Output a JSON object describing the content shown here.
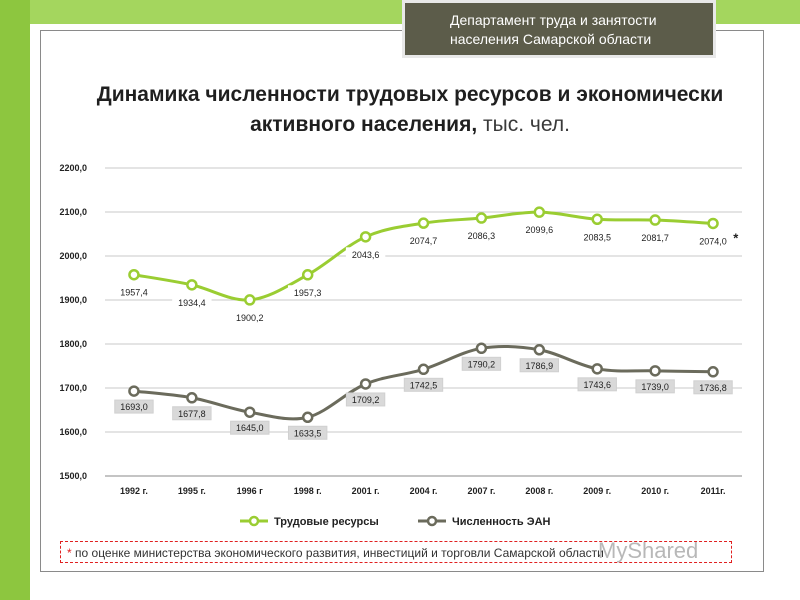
{
  "header": {
    "line1": "Департамент труда и занятости",
    "line2": "населения Самарской области"
  },
  "title": {
    "main": "Динамика численности трудовых ресурсов и экономически активного населения,",
    "unit": "тыс. чел."
  },
  "footnote": {
    "star": "*",
    "text": "по оценке министерства экономического развития, инвестиций и торговли Самарской области"
  },
  "watermark": "MyShared",
  "chart_data": {
    "type": "line",
    "categories": [
      "1992 г.",
      "1995 г.",
      "1996 г",
      "1998 г.",
      "2001 г.",
      "2004 г.",
      "2007 г.",
      "2008 г.",
      "2009 г.",
      "2010 г.",
      "2011г."
    ],
    "ylim": [
      1500,
      2200
    ],
    "yticks": [
      "1500,0",
      "1600,0",
      "1700,0",
      "1800,0",
      "1900,0",
      "2000,0",
      "2100,0",
      "2200,0"
    ],
    "grid": true,
    "legend_position": "bottom",
    "series": [
      {
        "name": "Трудовые ресурсы",
        "color": "#9acd32",
        "values": [
          1957.4,
          1934.4,
          1900.2,
          1957.3,
          2043.6,
          2074.7,
          2086.3,
          2099.6,
          2083.5,
          2081.7,
          2074.0
        ],
        "labels": [
          "1957,4",
          "1934,4",
          "1900,2",
          "1957,3",
          "2043,6",
          "2074,7",
          "2086,3",
          "2099,6",
          "2083,5",
          "2081,7",
          "2074,0"
        ],
        "last_label_mark": "*"
      },
      {
        "name": "Численность ЭАН",
        "color": "#6b6b5c",
        "values": [
          1693.0,
          1677.8,
          1645.0,
          1633.5,
          1709.2,
          1742.5,
          1790.2,
          1786.9,
          1743.6,
          1739.0,
          1736.8
        ],
        "labels": [
          "1693,0",
          "1677,8",
          "1645,0",
          "1633,5",
          "1709,2",
          "1742,5",
          "1790,2",
          "1786,9",
          "1743,6",
          "1739,0",
          "1736,8"
        ]
      }
    ]
  }
}
